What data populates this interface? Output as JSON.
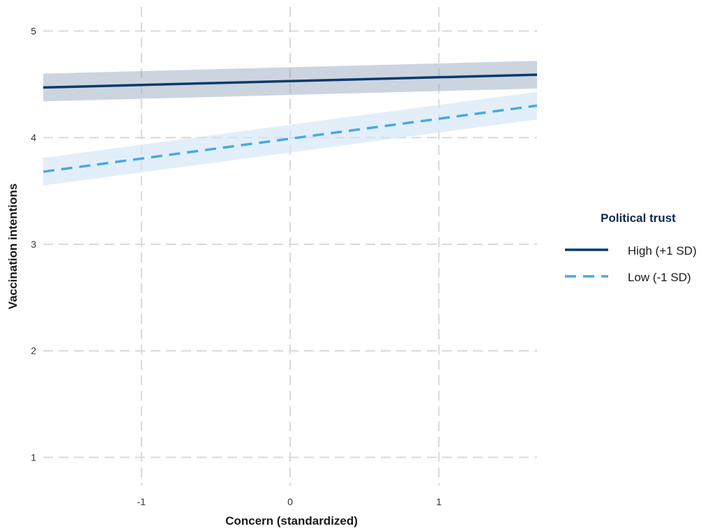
{
  "chart_data": {
    "type": "line",
    "xlabel": "Concern (standardized)",
    "ylabel": "Vaccination intentions",
    "xlim": [
      -1.66,
      1.66
    ],
    "ylim": [
      0.8,
      5.16
    ],
    "xticks": [
      -1,
      0,
      1
    ],
    "xtick_labels": [
      "-1",
      "0",
      "1"
    ],
    "yticks": [
      1,
      2,
      3,
      4,
      5
    ],
    "ytick_labels": [
      "1",
      "2",
      "3",
      "4",
      "5"
    ],
    "grid": true,
    "grid_style": "dashed",
    "legend_position": "right",
    "legend_title": "Political trust",
    "x": [
      -1.66,
      1.66
    ],
    "series": [
      {
        "name": "High (+1 SD)",
        "line_style": "solid",
        "color": "#0b3a6e",
        "band_color": "#8fa2b8",
        "values": [
          4.47,
          4.59
        ],
        "ci_lower": [
          4.34,
          4.46
        ],
        "ci_upper": [
          4.6,
          4.72
        ]
      },
      {
        "name": "Low (-1 SD)",
        "line_style": "dashed",
        "color": "#4aa8e0",
        "band_color": "#cfe5f7",
        "values": [
          3.68,
          4.3
        ],
        "ci_lower": [
          3.55,
          4.17
        ],
        "ci_upper": [
          3.81,
          4.43
        ]
      }
    ]
  }
}
